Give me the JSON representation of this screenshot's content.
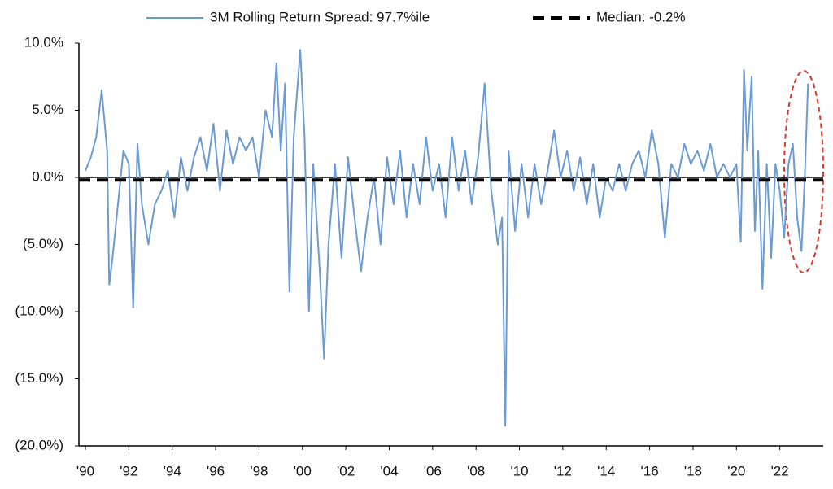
{
  "chart_data": {
    "type": "line",
    "series": [
      {
        "name": "3M Rolling Return Spread: 97.7%ile",
        "color": "#6b9bd2",
        "x": [
          1990,
          1990.25,
          1990.5,
          1990.75,
          1991.0,
          1991.1,
          1991.25,
          1991.5,
          1991.75,
          1992,
          1992.2,
          1992.4,
          1992.6,
          1992.9,
          1993.2,
          1993.5,
          1993.8,
          1994.1,
          1994.4,
          1994.7,
          1995,
          1995.3,
          1995.6,
          1995.9,
          1996.2,
          1996.5,
          1996.8,
          1997.1,
          1997.4,
          1997.7,
          1998,
          1998.3,
          1998.6,
          1998.8,
          1999.0,
          1999.2,
          1999.4,
          1999.6,
          1999.9,
          2000.1,
          2000.3,
          2000.5,
          2000.8,
          2001.0,
          2001.2,
          2001.5,
          2001.8,
          2002.1,
          2002.4,
          2002.7,
          2003.0,
          2003.3,
          2003.6,
          2003.9,
          2004.2,
          2004.5,
          2004.8,
          2005.1,
          2005.4,
          2005.7,
          2006,
          2006.3,
          2006.6,
          2006.9,
          2007.2,
          2007.5,
          2007.8,
          2008.1,
          2008.4,
          2008.7,
          2009.0,
          2009.2,
          2009.35,
          2009.5,
          2009.8,
          2010.1,
          2010.4,
          2010.7,
          2011,
          2011.3,
          2011.6,
          2011.9,
          2012.2,
          2012.5,
          2012.8,
          2013.1,
          2013.4,
          2013.7,
          2014,
          2014.3,
          2014.6,
          2014.9,
          2015.2,
          2015.5,
          2015.8,
          2016.1,
          2016.4,
          2016.7,
          2017,
          2017.3,
          2017.6,
          2017.9,
          2018.2,
          2018.5,
          2018.8,
          2019.1,
          2019.4,
          2019.7,
          2020.0,
          2020.2,
          2020.35,
          2020.5,
          2020.7,
          2020.85,
          2021.0,
          2021.2,
          2021.4,
          2021.6,
          2021.8,
          2022.0,
          2022.2,
          2022.4,
          2022.6,
          2022.8,
          2023.0,
          2023.15,
          2023.3
        ],
        "values": [
          0.5,
          1.5,
          3,
          6.5,
          2,
          -8,
          -6,
          -2,
          2,
          1,
          -9.7,
          2.5,
          -2,
          -5,
          -2,
          -1,
          0.5,
          -3,
          1.5,
          -1,
          1.5,
          3,
          0.5,
          4,
          -1,
          3.5,
          1,
          3,
          2,
          3,
          0,
          5,
          3,
          8.5,
          2,
          7,
          -8.5,
          3,
          9.5,
          3,
          -10,
          1,
          -7,
          -13.5,
          -5,
          1,
          -6,
          1.5,
          -3,
          -7,
          -3,
          0,
          -5,
          1.5,
          -2,
          2,
          -3,
          1,
          -2,
          3,
          -1,
          1,
          -3,
          3,
          -1,
          2,
          -2,
          1.5,
          7,
          -1,
          -5,
          -3,
          -18.5,
          2,
          -4,
          1,
          -3,
          1,
          -2,
          0.5,
          3.5,
          0,
          2,
          -1,
          1.5,
          -2,
          1,
          -3,
          0,
          -1,
          1,
          -1,
          1,
          2,
          0,
          3.5,
          1,
          -4.5,
          1,
          0,
          2.5,
          1,
          2,
          0.5,
          2.5,
          0,
          1,
          0,
          1,
          -4.8,
          8,
          2,
          7.5,
          -4,
          2,
          -8.3,
          1,
          -6,
          1,
          -1,
          -4.5,
          1,
          2.5,
          -3,
          -5.5,
          0,
          7
        ]
      },
      {
        "name": "Median: -0.2%",
        "color": "#000000",
        "dashed": true,
        "x": [
          1989.7,
          2024
        ],
        "values": [
          -0.2,
          -0.2
        ]
      }
    ],
    "xlim": [
      1989.7,
      2024
    ],
    "xticks": [
      {
        "value": 1990,
        "label": "'90"
      },
      {
        "value": 1992,
        "label": "'92"
      },
      {
        "value": 1994,
        "label": "'94"
      },
      {
        "value": 1996,
        "label": "'96"
      },
      {
        "value": 1998,
        "label": "'98"
      },
      {
        "value": 2000,
        "label": "'00"
      },
      {
        "value": 2002,
        "label": "'02"
      },
      {
        "value": 2004,
        "label": "'04"
      },
      {
        "value": 2006,
        "label": "'06"
      },
      {
        "value": 2008,
        "label": "'08"
      },
      {
        "value": 2010,
        "label": "'10"
      },
      {
        "value": 2012,
        "label": "'12"
      },
      {
        "value": 2014,
        "label": "'14"
      },
      {
        "value": 2016,
        "label": "'16"
      },
      {
        "value": 2018,
        "label": "'18"
      },
      {
        "value": 2020,
        "label": "'20"
      },
      {
        "value": 2022,
        "label": "'22"
      }
    ],
    "ylim": [
      -20,
      10
    ],
    "yticks": [
      {
        "value": 10,
        "label": "10.0%"
      },
      {
        "value": 5,
        "label": "5.0%"
      },
      {
        "value": 0,
        "label": "0.0%"
      },
      {
        "value": -5,
        "label": "(5.0%)"
      },
      {
        "value": -10,
        "label": "(10.0%)"
      },
      {
        "value": -15,
        "label": "(15.0%)"
      },
      {
        "value": -20,
        "label": "(20.0%)"
      }
    ]
  }
}
